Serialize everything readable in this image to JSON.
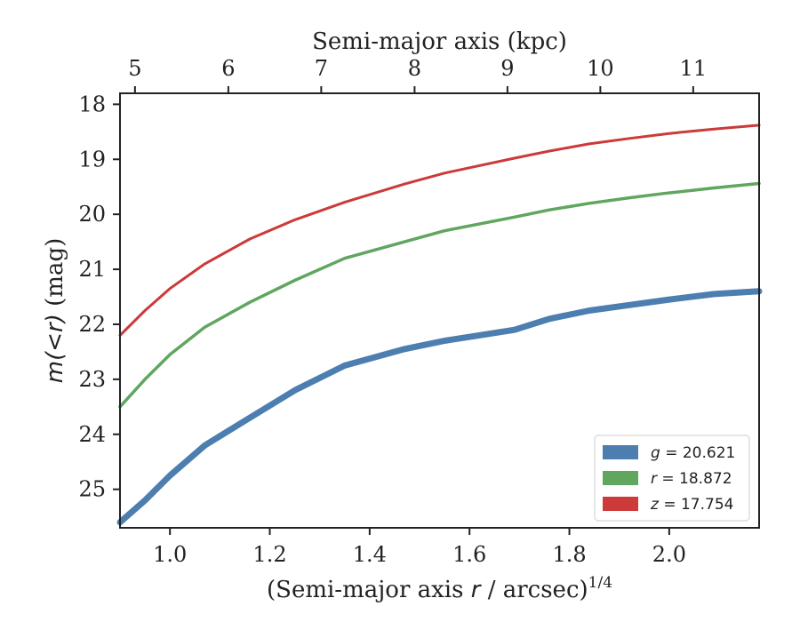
{
  "chart_data": {
    "type": "line",
    "title": "",
    "xlabel": "(Semi-major axis r / arcsec)^{1/4}",
    "xlabel_parts": [
      "(Semi-major axis ",
      "r",
      " / arcsec)",
      "1/4"
    ],
    "ylabel": "m(<r) (mag)",
    "ylabel_parts": [
      "m(<r)",
      " (mag)"
    ],
    "top_xlabel": "Semi-major axis (kpc)",
    "xlim": [
      0.9,
      2.18
    ],
    "ylim": [
      25.7,
      17.8
    ],
    "y_inverted": true,
    "xticks": [
      1.0,
      1.2,
      1.4,
      1.6,
      1.8,
      2.0
    ],
    "xtick_labels": [
      "1.0",
      "1.2",
      "1.4",
      "1.6",
      "1.8",
      "2.0"
    ],
    "yticks": [
      18,
      19,
      20,
      21,
      22,
      23,
      24,
      25
    ],
    "ytick_labels": [
      "18",
      "19",
      "20",
      "21",
      "22",
      "23",
      "24",
      "25"
    ],
    "top_xticks_kpc": [
      5,
      6,
      7,
      8,
      9,
      10,
      11
    ],
    "top_xtick_labels": [
      "5",
      "6",
      "7",
      "8",
      "9",
      "10",
      "11"
    ],
    "top_axis_positions_bottom_units": [
      0.93,
      1.117,
      1.303,
      1.49,
      1.676,
      1.862,
      2.048
    ],
    "legend_position": "lower right",
    "series": [
      {
        "name": "g = 20.621",
        "name_parts": [
          "g",
          " = 20.621"
        ],
        "color": "#4c7eb0",
        "x": [
          0.9,
          0.95,
          1.0,
          1.07,
          1.16,
          1.25,
          1.35,
          1.47,
          1.55,
          1.69,
          1.76,
          1.84,
          1.92,
          2.0,
          2.09,
          2.18
        ],
        "y": [
          25.6,
          25.2,
          24.75,
          24.2,
          23.7,
          23.2,
          22.75,
          22.45,
          22.3,
          22.1,
          21.9,
          21.75,
          21.65,
          21.55,
          21.45,
          21.4
        ]
      },
      {
        "name": "r = 18.872",
        "name_parts": [
          "r",
          " = 18.872"
        ],
        "color": "#5fa65f",
        "x": [
          0.9,
          0.95,
          1.0,
          1.07,
          1.16,
          1.25,
          1.35,
          1.47,
          1.55,
          1.69,
          1.76,
          1.84,
          1.92,
          1.99,
          2.09,
          2.18
        ],
        "y": [
          23.5,
          23.0,
          22.55,
          22.05,
          21.6,
          21.2,
          20.8,
          20.5,
          20.3,
          20.05,
          19.92,
          19.8,
          19.7,
          19.62,
          19.52,
          19.44
        ]
      },
      {
        "name": "z = 17.754",
        "name_parts": [
          "z",
          " = 17.754"
        ],
        "color": "#cc3a3a",
        "x": [
          0.9,
          0.95,
          1.0,
          1.07,
          1.16,
          1.25,
          1.35,
          1.47,
          1.55,
          1.69,
          1.76,
          1.84,
          1.92,
          2.0,
          2.09,
          2.18
        ],
        "y": [
          22.2,
          21.75,
          21.35,
          20.9,
          20.45,
          20.1,
          19.78,
          19.45,
          19.25,
          18.98,
          18.85,
          18.72,
          18.62,
          18.53,
          18.45,
          18.38
        ]
      }
    ]
  }
}
